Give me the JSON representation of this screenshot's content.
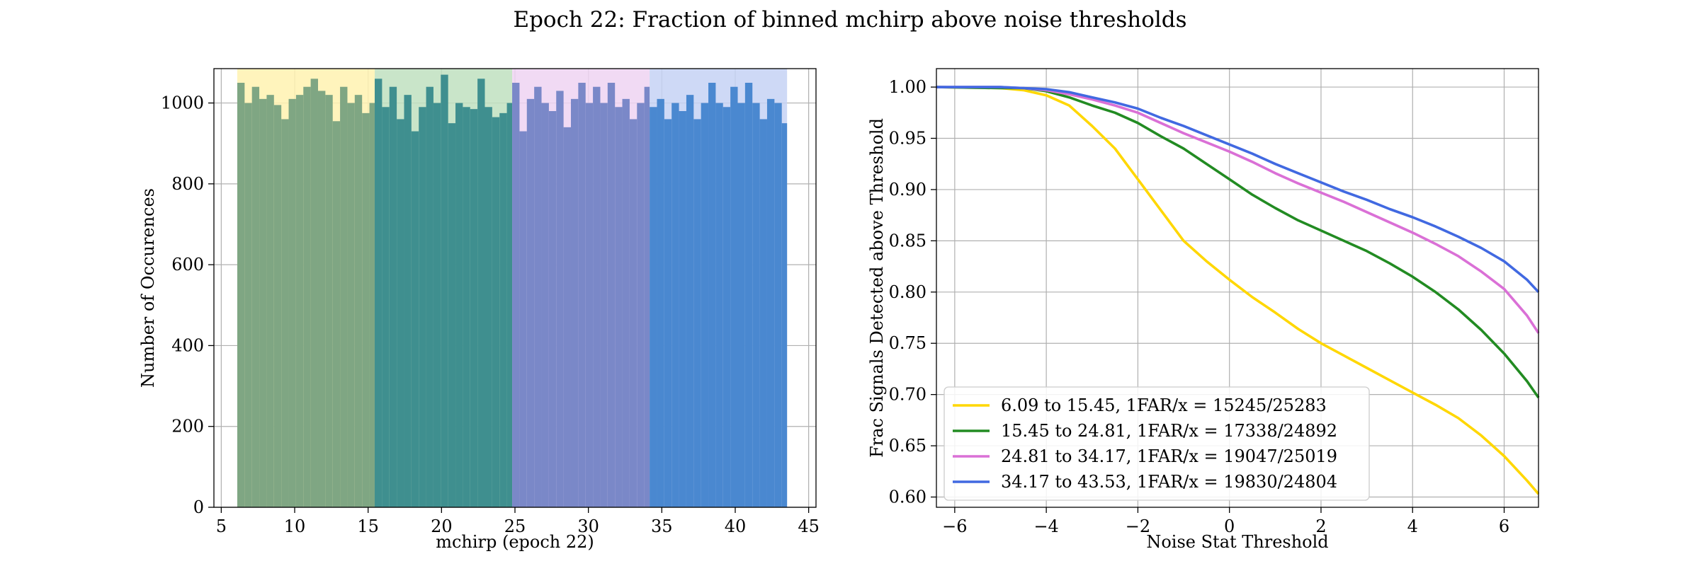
{
  "figure": {
    "title": "Epoch 22: Fraction of binned mchirp above noise thresholds"
  },
  "chart_data": [
    {
      "type": "bar",
      "subtype": "histogram",
      "xlabel": "mchirp (epoch 22)",
      "ylabel": "Number of Occurences",
      "xlim": [
        4.5,
        45.5
      ],
      "ylim": [
        0,
        1085
      ],
      "xticks": [
        5,
        10,
        15,
        20,
        25,
        30,
        35,
        40,
        45
      ],
      "yticks": [
        0,
        200,
        400,
        600,
        800,
        1000
      ],
      "grid": true,
      "bin_width": 0.5,
      "regions": [
        {
          "start": 6.09,
          "end": 15.45,
          "color": "#fff2b0",
          "bar_color": "#7fa683"
        },
        {
          "start": 15.45,
          "end": 24.81,
          "color": "#bfe0bf",
          "bar_color": "#3f8f8f"
        },
        {
          "start": 24.81,
          "end": 34.17,
          "color": "#efd3f2",
          "bar_color": "#7a88c8"
        },
        {
          "start": 34.17,
          "end": 43.53,
          "color": "#c6d2f5",
          "bar_color": "#4a88d0"
        }
      ],
      "bins": [
        {
          "x": 6.09,
          "value": 1050
        },
        {
          "x": 6.59,
          "value": 1000
        },
        {
          "x": 7.09,
          "value": 1040
        },
        {
          "x": 7.59,
          "value": 1010
        },
        {
          "x": 8.09,
          "value": 1020
        },
        {
          "x": 8.59,
          "value": 995
        },
        {
          "x": 9.09,
          "value": 960
        },
        {
          "x": 9.59,
          "value": 1010
        },
        {
          "x": 10.09,
          "value": 1020
        },
        {
          "x": 10.59,
          "value": 1040
        },
        {
          "x": 11.09,
          "value": 1060
        },
        {
          "x": 11.59,
          "value": 1030
        },
        {
          "x": 12.09,
          "value": 1020
        },
        {
          "x": 12.59,
          "value": 955
        },
        {
          "x": 13.09,
          "value": 1040
        },
        {
          "x": 13.59,
          "value": 1000
        },
        {
          "x": 14.09,
          "value": 1020
        },
        {
          "x": 14.59,
          "value": 975
        },
        {
          "x": 15.09,
          "value": 1000
        },
        {
          "x": 15.45,
          "value": 1060
        },
        {
          "x": 15.95,
          "value": 990
        },
        {
          "x": 16.45,
          "value": 1040
        },
        {
          "x": 16.95,
          "value": 960
        },
        {
          "x": 17.45,
          "value": 1020
        },
        {
          "x": 17.95,
          "value": 930
        },
        {
          "x": 18.45,
          "value": 990
        },
        {
          "x": 18.95,
          "value": 1040
        },
        {
          "x": 19.45,
          "value": 1000
        },
        {
          "x": 19.95,
          "value": 1070
        },
        {
          "x": 20.45,
          "value": 950
        },
        {
          "x": 20.95,
          "value": 1000
        },
        {
          "x": 21.45,
          "value": 990
        },
        {
          "x": 21.95,
          "value": 985
        },
        {
          "x": 22.45,
          "value": 1060
        },
        {
          "x": 22.95,
          "value": 990
        },
        {
          "x": 23.45,
          "value": 965
        },
        {
          "x": 23.95,
          "value": 975
        },
        {
          "x": 24.45,
          "value": 1000
        },
        {
          "x": 24.81,
          "value": 1050
        },
        {
          "x": 25.31,
          "value": 930
        },
        {
          "x": 25.81,
          "value": 1010
        },
        {
          "x": 26.31,
          "value": 1040
        },
        {
          "x": 26.81,
          "value": 1000
        },
        {
          "x": 27.31,
          "value": 980
        },
        {
          "x": 27.81,
          "value": 1030
        },
        {
          "x": 28.31,
          "value": 940
        },
        {
          "x": 28.81,
          "value": 1010
        },
        {
          "x": 29.31,
          "value": 1050
        },
        {
          "x": 29.81,
          "value": 1000
        },
        {
          "x": 30.31,
          "value": 1040
        },
        {
          "x": 30.81,
          "value": 1000
        },
        {
          "x": 31.31,
          "value": 1050
        },
        {
          "x": 31.81,
          "value": 990
        },
        {
          "x": 32.31,
          "value": 1010
        },
        {
          "x": 32.81,
          "value": 960
        },
        {
          "x": 33.31,
          "value": 1000
        },
        {
          "x": 33.81,
          "value": 1040
        },
        {
          "x": 34.17,
          "value": 990
        },
        {
          "x": 34.67,
          "value": 1010
        },
        {
          "x": 35.17,
          "value": 960
        },
        {
          "x": 35.67,
          "value": 1000
        },
        {
          "x": 36.17,
          "value": 980
        },
        {
          "x": 36.67,
          "value": 1020
        },
        {
          "x": 37.17,
          "value": 960
        },
        {
          "x": 37.67,
          "value": 1000
        },
        {
          "x": 38.17,
          "value": 1050
        },
        {
          "x": 38.67,
          "value": 1000
        },
        {
          "x": 39.17,
          "value": 990
        },
        {
          "x": 39.67,
          "value": 1040
        },
        {
          "x": 40.17,
          "value": 1000
        },
        {
          "x": 40.67,
          "value": 1050
        },
        {
          "x": 41.17,
          "value": 1000
        },
        {
          "x": 41.67,
          "value": 960
        },
        {
          "x": 42.17,
          "value": 1010
        },
        {
          "x": 42.67,
          "value": 1000
        },
        {
          "x": 43.17,
          "value": 950
        }
      ]
    },
    {
      "type": "line",
      "xlabel": "Noise Stat Threshold",
      "ylabel": "Frac Signals Detected above Threshold",
      "xlim": [
        -6.4,
        6.75
      ],
      "ylim": [
        0.59,
        1.018
      ],
      "xticks": [
        -6,
        -4,
        -2,
        0,
        2,
        4,
        6
      ],
      "yticks": [
        0.6,
        0.65,
        0.7,
        0.75,
        0.8,
        0.85,
        0.9,
        0.95,
        1.0
      ],
      "ytick_labels": [
        "0.60",
        "0.65",
        "0.70",
        "0.75",
        "0.80",
        "0.85",
        "0.90",
        "0.95",
        "1.00"
      ],
      "grid": true,
      "legend_position": "lower-left",
      "series": [
        {
          "name": "6.09 to 15.45, 1FAR/x = 15245/25283",
          "color": "#ffd700",
          "x": [
            -6.4,
            -5,
            -4.5,
            -4,
            -3.5,
            -3,
            -2.5,
            -2,
            -1.5,
            -1,
            -0.5,
            0,
            0.5,
            1,
            1.5,
            2,
            2.5,
            3,
            3.5,
            4,
            4.5,
            5,
            5.5,
            6,
            6.5,
            6.75
          ],
          "y": [
            1.0,
            0.999,
            0.997,
            0.992,
            0.982,
            0.962,
            0.94,
            0.91,
            0.88,
            0.85,
            0.83,
            0.812,
            0.795,
            0.78,
            0.764,
            0.75,
            0.738,
            0.726,
            0.714,
            0.702,
            0.69,
            0.677,
            0.66,
            0.64,
            0.616,
            0.603
          ]
        },
        {
          "name": "15.45 to 24.81, 1FAR/x = 17338/24892",
          "color": "#228b22",
          "x": [
            -6.4,
            -5,
            -4.5,
            -4,
            -3.5,
            -3,
            -2.5,
            -2,
            -1.5,
            -1,
            -0.5,
            0,
            0.5,
            1,
            1.5,
            2,
            2.5,
            3,
            3.5,
            4,
            4.5,
            5,
            5.5,
            6,
            6.5,
            6.75
          ],
          "y": [
            1.0,
            0.999,
            0.999,
            0.996,
            0.99,
            0.982,
            0.975,
            0.965,
            0.952,
            0.94,
            0.925,
            0.91,
            0.895,
            0.882,
            0.87,
            0.86,
            0.85,
            0.84,
            0.828,
            0.815,
            0.8,
            0.783,
            0.763,
            0.74,
            0.713,
            0.697
          ]
        },
        {
          "name": "24.81 to 34.17, 1FAR/x = 19047/25019",
          "color": "#da70d6",
          "x": [
            -6.4,
            -5,
            -4.5,
            -4,
            -3.5,
            -3,
            -2.5,
            -2,
            -1.5,
            -1,
            -0.5,
            0,
            0.5,
            1,
            1.5,
            2,
            2.5,
            3,
            3.5,
            4,
            4.5,
            5,
            5.5,
            6,
            6.5,
            6.75
          ],
          "y": [
            1.0,
            1.0,
            0.999,
            0.997,
            0.993,
            0.988,
            0.982,
            0.975,
            0.965,
            0.955,
            0.946,
            0.937,
            0.927,
            0.916,
            0.906,
            0.897,
            0.888,
            0.878,
            0.868,
            0.858,
            0.847,
            0.835,
            0.82,
            0.803,
            0.777,
            0.76
          ]
        },
        {
          "name": "34.17 to 43.53, 1FAR/x = 19830/24804",
          "color": "#4169e1",
          "x": [
            -6.4,
            -5,
            -4.5,
            -4,
            -3.5,
            -3,
            -2.5,
            -2,
            -1.5,
            -1,
            -0.5,
            0,
            0.5,
            1,
            1.5,
            2,
            2.5,
            3,
            3.5,
            4,
            4.5,
            5,
            5.5,
            6,
            6.5,
            6.75
          ],
          "y": [
            1.0,
            1.0,
            0.999,
            0.998,
            0.995,
            0.99,
            0.985,
            0.979,
            0.97,
            0.962,
            0.953,
            0.944,
            0.935,
            0.925,
            0.916,
            0.907,
            0.898,
            0.89,
            0.881,
            0.873,
            0.864,
            0.854,
            0.843,
            0.83,
            0.812,
            0.8
          ]
        }
      ]
    }
  ]
}
